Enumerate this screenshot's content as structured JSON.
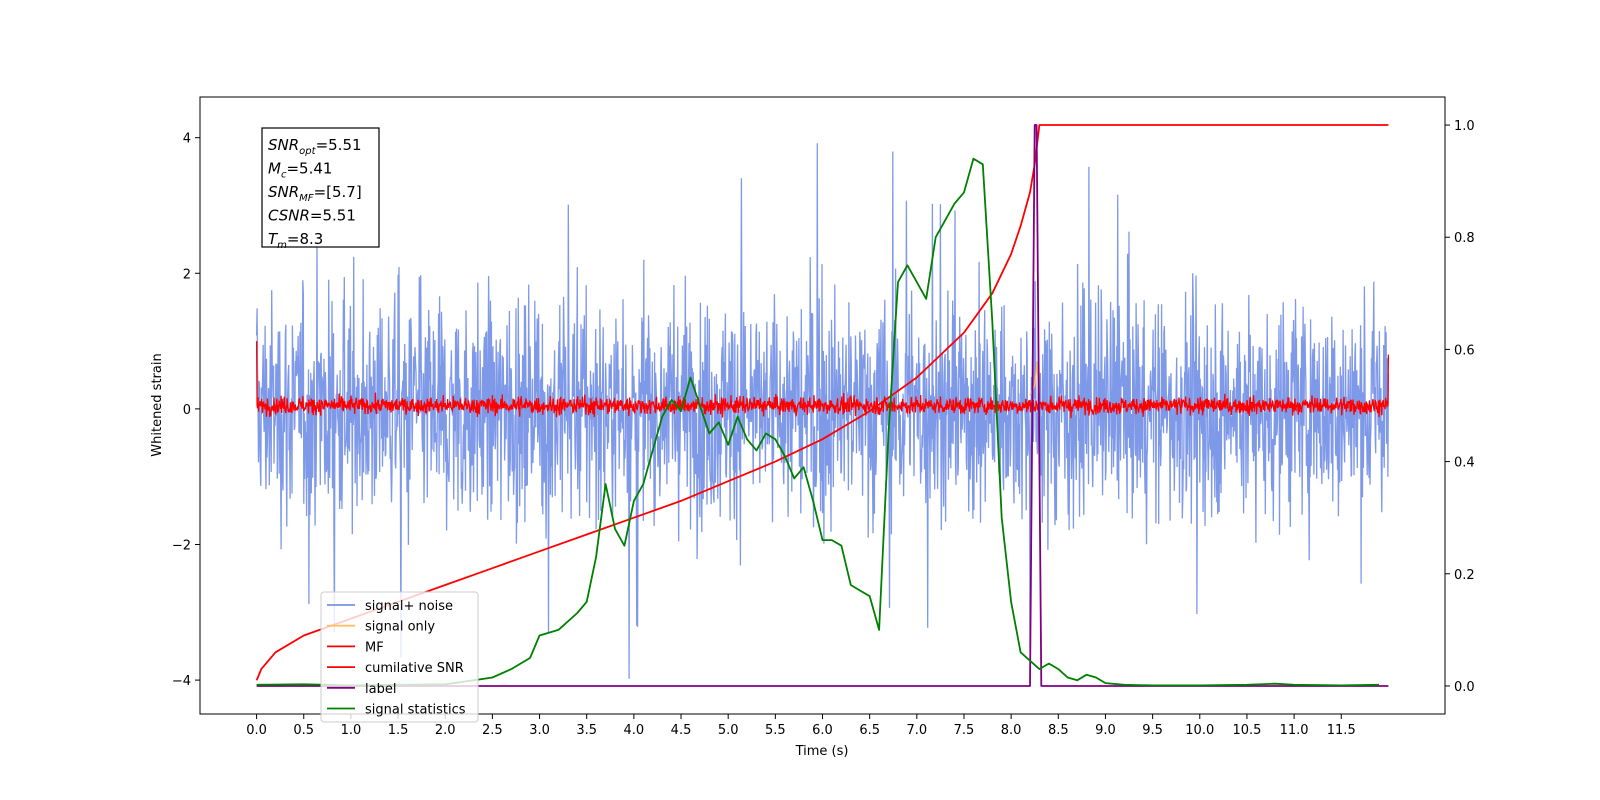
{
  "chart_data": {
    "type": "line",
    "xlabel": "Time (s)",
    "ylabel": "Whitened strain",
    "xlim": [
      -0.6,
      12.6
    ],
    "ylim_left": [
      -4.5,
      4.6
    ],
    "ylim_right": [
      -0.05,
      1.05
    ],
    "x_ticks": [
      "0.0",
      "0.5",
      "1.0",
      "1.5",
      "2.0",
      "2.5",
      "3.0",
      "3.5",
      "4.0",
      "4.5",
      "5.0",
      "5.5",
      "6.0",
      "6.5",
      "7.0",
      "7.5",
      "8.0",
      "8.5",
      "9.0",
      "9.5",
      "10.0",
      "10.5",
      "11.0",
      "11.5"
    ],
    "y_ticks_left": [
      "4",
      "2",
      "0",
      "−2",
      "−4"
    ],
    "y_ticks_right": [
      "1.0",
      "0.8",
      "0.6",
      "0.4",
      "0.2",
      "0.0"
    ],
    "grid": false,
    "legend_position": "lower-left",
    "annotation": {
      "lines": [
        {
          "base": "SNR",
          "sub": "opt",
          "text": "=5.51"
        },
        {
          "base": "M",
          "sub": "c",
          "text": "=5.41"
        },
        {
          "base": "SNR",
          "sub": "MF",
          "text": "=[5.7]"
        },
        {
          "base": "CSNR",
          "sub": "",
          "text": "=5.51"
        },
        {
          "base": "T",
          "sub": "m",
          "text": "=8.3"
        }
      ]
    },
    "series": [
      {
        "name": "signal+ noise",
        "axis": "left",
        "color": "#7893e8",
        "description_values": {
          "range": [
            -4.05,
            4.15
          ],
          "typical_band": [
            -2.3,
            2.3
          ],
          "x_range": [
            0.0,
            12.0
          ]
        }
      },
      {
        "name": "signal only",
        "axis": "left",
        "color": "#ffbf66",
        "values_at": {
          "x": [
            8.2,
            8.25,
            8.28,
            8.3
          ],
          "y": [
            0.2,
            0.35,
            0.7,
            -0.3
          ]
        }
      },
      {
        "name": "MF",
        "axis": "left",
        "color": "#ff0000",
        "description_values": {
          "typical_band": [
            -0.25,
            0.35
          ],
          "start_value": 1.0,
          "end_value": 0.8
        }
      },
      {
        "name": "cumilative SNR",
        "axis": "right",
        "color": "#ff0000",
        "x": [
          0.0,
          0.05,
          0.2,
          0.5,
          1.0,
          1.5,
          2.0,
          2.5,
          3.0,
          3.5,
          4.0,
          4.5,
          5.0,
          5.5,
          6.0,
          6.5,
          7.0,
          7.5,
          7.8,
          8.0,
          8.1,
          8.2,
          8.25,
          8.3,
          12.0
        ],
        "y": [
          0.01,
          0.03,
          0.06,
          0.09,
          0.12,
          0.15,
          0.18,
          0.21,
          0.24,
          0.27,
          0.3,
          0.33,
          0.365,
          0.4,
          0.44,
          0.49,
          0.55,
          0.63,
          0.7,
          0.77,
          0.82,
          0.88,
          0.93,
          1.0,
          1.0
        ]
      },
      {
        "name": "label",
        "axis": "right",
        "color": "#800080",
        "x": [
          0.0,
          8.2,
          8.25,
          8.27,
          8.32,
          12.0
        ],
        "y": [
          0.0,
          0.0,
          1.0,
          1.0,
          0.0,
          0.0
        ]
      },
      {
        "name": "signal statistics",
        "axis": "right",
        "color": "#008000",
        "x": [
          0.0,
          0.5,
          1.0,
          1.5,
          2.0,
          2.3,
          2.5,
          2.7,
          2.9,
          3.0,
          3.2,
          3.4,
          3.5,
          3.6,
          3.7,
          3.8,
          3.9,
          4.0,
          4.1,
          4.2,
          4.3,
          4.4,
          4.5,
          4.6,
          4.7,
          4.8,
          4.9,
          5.0,
          5.1,
          5.2,
          5.3,
          5.4,
          5.5,
          5.6,
          5.7,
          5.8,
          5.9,
          6.0,
          6.1,
          6.2,
          6.3,
          6.4,
          6.5,
          6.6,
          6.7,
          6.8,
          6.9,
          7.0,
          7.1,
          7.2,
          7.3,
          7.4,
          7.5,
          7.6,
          7.7,
          7.8,
          7.9,
          8.0,
          8.1,
          8.2,
          8.3,
          8.4,
          8.5,
          8.6,
          8.7,
          8.8,
          8.9,
          9.0,
          9.2,
          9.5,
          10.0,
          10.5,
          10.8,
          11.0,
          11.5,
          11.9
        ],
        "y": [
          0.002,
          0.003,
          0.001,
          0.002,
          0.003,
          0.01,
          0.015,
          0.03,
          0.05,
          0.09,
          0.1,
          0.13,
          0.15,
          0.23,
          0.36,
          0.28,
          0.25,
          0.33,
          0.36,
          0.42,
          0.48,
          0.51,
          0.49,
          0.55,
          0.5,
          0.45,
          0.47,
          0.43,
          0.48,
          0.44,
          0.42,
          0.45,
          0.44,
          0.41,
          0.37,
          0.39,
          0.33,
          0.26,
          0.26,
          0.25,
          0.18,
          0.17,
          0.16,
          0.1,
          0.45,
          0.72,
          0.75,
          0.72,
          0.69,
          0.8,
          0.83,
          0.86,
          0.88,
          0.94,
          0.93,
          0.65,
          0.3,
          0.15,
          0.06,
          0.045,
          0.03,
          0.04,
          0.03,
          0.015,
          0.01,
          0.02,
          0.015,
          0.005,
          0.002,
          0.001,
          0.001,
          0.002,
          0.004,
          0.002,
          0.001,
          0.002
        ]
      }
    ]
  }
}
